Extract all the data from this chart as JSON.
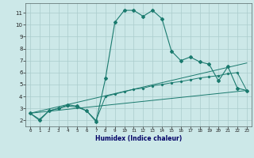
{
  "xlabel": "Humidex (Indice chaleur)",
  "bg_color": "#cce8e8",
  "grid_color": "#aacccc",
  "line_color": "#1a7a6e",
  "xlim": [
    -0.5,
    23.5
  ],
  "ylim": [
    1.5,
    11.8
  ],
  "xticks": [
    0,
    1,
    2,
    3,
    4,
    5,
    6,
    7,
    8,
    9,
    10,
    11,
    12,
    13,
    14,
    15,
    16,
    17,
    18,
    19,
    20,
    21,
    22,
    23
  ],
  "yticks": [
    2,
    3,
    4,
    5,
    6,
    7,
    8,
    9,
    10,
    11
  ],
  "curve1_x": [
    0,
    1,
    2,
    3,
    4,
    5,
    6,
    7,
    8,
    9,
    10,
    11,
    12,
    13,
    14,
    15,
    16,
    17,
    18,
    19,
    20,
    21,
    22,
    23
  ],
  "curve1_y": [
    2.6,
    2.0,
    2.8,
    3.0,
    3.3,
    3.2,
    2.8,
    1.9,
    5.5,
    10.2,
    11.2,
    11.2,
    10.7,
    11.2,
    10.5,
    7.8,
    7.0,
    7.3,
    6.9,
    6.7,
    5.3,
    6.5,
    4.7,
    4.5
  ],
  "curve2_x": [
    0,
    1,
    2,
    3,
    4,
    5,
    6,
    7,
    8,
    9,
    10,
    11,
    12,
    13,
    14,
    15,
    16,
    17,
    18,
    19,
    20,
    21,
    22,
    23
  ],
  "curve2_y": [
    2.6,
    2.1,
    2.8,
    3.0,
    3.2,
    3.1,
    2.8,
    2.0,
    4.0,
    4.2,
    4.4,
    4.6,
    4.7,
    4.9,
    5.0,
    5.15,
    5.25,
    5.4,
    5.55,
    5.65,
    5.75,
    5.9,
    6.0,
    4.5
  ],
  "line1_x": [
    0,
    23
  ],
  "line1_y": [
    2.6,
    6.8
  ],
  "line2_x": [
    0,
    23
  ],
  "line2_y": [
    2.6,
    4.5
  ]
}
